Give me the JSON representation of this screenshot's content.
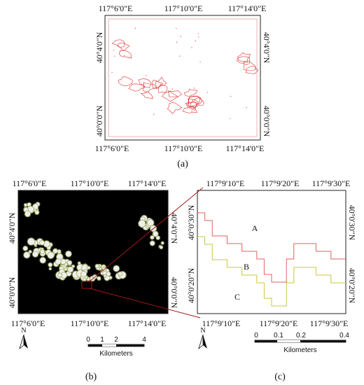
{
  "panel_a": {
    "caption": "(a)",
    "top_ticks": [
      "117°6'0\"E",
      "117°10'0\"E",
      "117°14'0\"E"
    ],
    "bottom_ticks": [
      "117°6'0\"E",
      "117°10'0\"E",
      "117°14'0\"E"
    ],
    "left_ticks": [
      "40°4'0\"N",
      "40°0'0\"N"
    ],
    "right_ticks": [
      "40°4'0\"N",
      "40°0'0\"N"
    ],
    "boundary_color": "#e03030"
  },
  "panel_b": {
    "caption": "(b)",
    "top_ticks": [
      "117°6'0\"E",
      "117°10'0\"E",
      "117°14'0\"E"
    ],
    "bottom_ticks": [
      "117°6'0\"E",
      "117°10'0\"E",
      "117°14'0\"E"
    ],
    "left_ticks": [
      "40°4'0\"N",
      "40°0'0\"N"
    ],
    "right_ticks": [
      "40°4'0\"N",
      "40°0'0\"N"
    ],
    "north_label": "N",
    "scale_ticks": [
      "0",
      "1",
      "2",
      "4"
    ],
    "scale_unit": "Kilometers",
    "background_color": "#000000"
  },
  "panel_c": {
    "caption": "(c)",
    "top_ticks": [
      "117°9'10\"E",
      "117°9'20\"E",
      "117°9'30\"E"
    ],
    "bottom_ticks": [
      "117°9'10\"E",
      "117°9'20\"E",
      "117°9'30\"E"
    ],
    "left_ticks": [
      "40°0'30\"N",
      "40°0'20\"N"
    ],
    "right_ticks": [
      "40°0'30\"N",
      "40°0'20\"N"
    ],
    "zone_labels": [
      "A",
      "B",
      "C"
    ],
    "north_label": "N",
    "scale_ticks": [
      "0",
      "0.1",
      "0.2",
      "0.4"
    ],
    "scale_unit": "Kilometers",
    "zone_label_color": "#b05a2a",
    "upper_boundary_color": "#e06060",
    "lower_boundary_color": "#c8c838",
    "leader_line_color": "#a01818"
  }
}
